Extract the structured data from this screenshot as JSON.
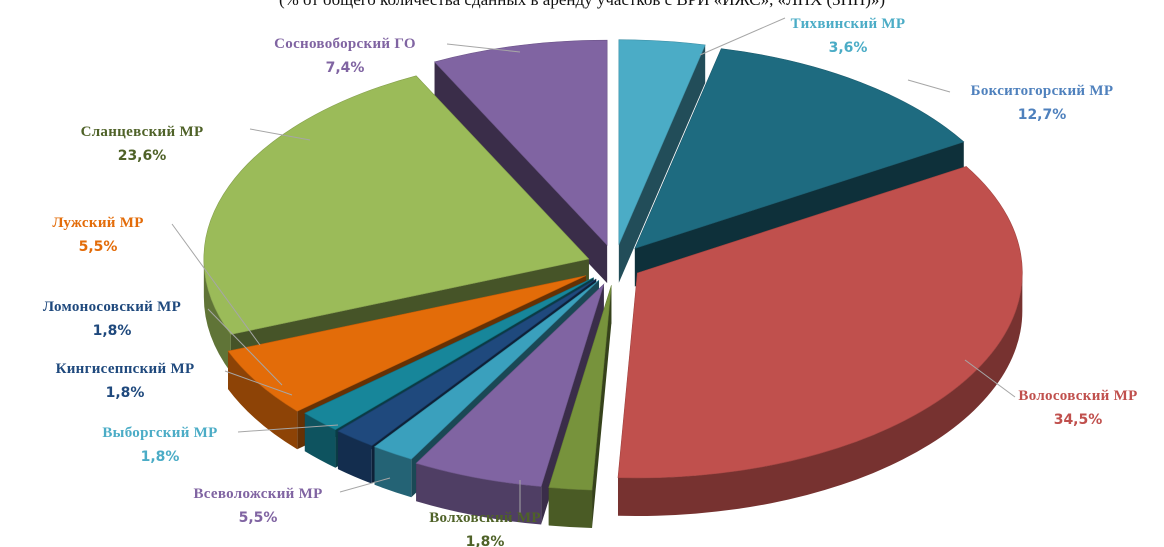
{
  "chart_data": {
    "type": "pie",
    "title": "(% от общего количества сданных в аренду участков с ВРИ «ИЖС», «ЛПХ (ЗНП)»)",
    "slices": [
      {
        "name": "Тихвинский  МР",
        "value": 3.6,
        "label": "3,6%",
        "color": "#4bacc6"
      },
      {
        "name": "Бокситогорский  МР",
        "value": 12.7,
        "label": "12,7%",
        "color": "#1e6b80"
      },
      {
        "name": "Волосовский  МР",
        "value": 34.5,
        "label": "34,5%",
        "color": "#c0504d"
      },
      {
        "name": "Волховский  МР",
        "value": 1.8,
        "label": "1,8%",
        "color": "#77933c"
      },
      {
        "name": "Всеволожский  МР",
        "value": 5.5,
        "label": "5,5%",
        "color": "#8064a2"
      },
      {
        "name": "Выборгский  МР",
        "value": 1.8,
        "label": "1,8%",
        "color": "#3aa0bd"
      },
      {
        "name": "Кингисеппский  МР",
        "value": 1.8,
        "label": "1,8%",
        "color": "#1f497d"
      },
      {
        "name": "Ломоносовский  МР",
        "value": 1.8,
        "label": "1,8%",
        "color": "#17869a"
      },
      {
        "name": "Лужский  МР",
        "value": 5.5,
        "label": "5,5%",
        "color": "#e36c09"
      },
      {
        "name": "Сланцевский  МР",
        "value": 23.6,
        "label": "23,6%",
        "color": "#9bbb59"
      },
      {
        "name": "Сосновоборский  ГО",
        "value": 7.4,
        "label": "7,4%",
        "color": "#8064a2"
      }
    ],
    "label_colors": [
      "#4bacc6",
      "#4f81bd",
      "#c0504d",
      "#4f6228",
      "#8064a2",
      "#4bacc6",
      "#1f497d",
      "#1f497d",
      "#e36c09",
      "#4f6228",
      "#8064a2"
    ],
    "style": "3d-exploded"
  }
}
